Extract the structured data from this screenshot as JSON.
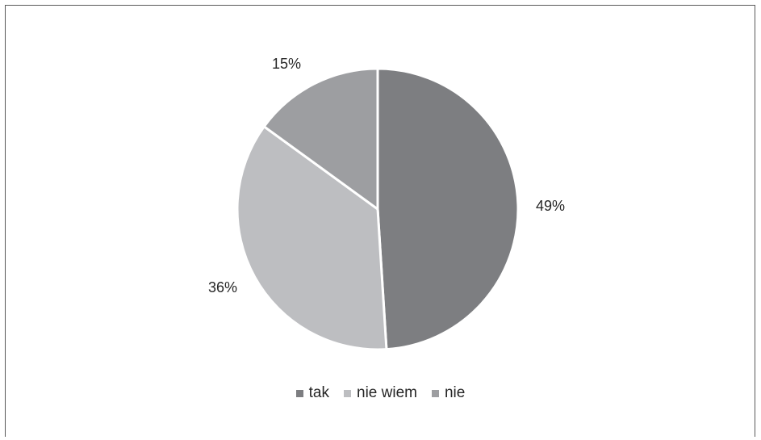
{
  "chart_data": {
    "type": "pie",
    "title": "",
    "slices": [
      {
        "name": "tak",
        "value": 49,
        "label": "49%",
        "color": "#7d7e81"
      },
      {
        "name": "nie wiem",
        "value": 36,
        "label": "36%",
        "color": "#bdbec1"
      },
      {
        "name": "nie",
        "value": 15,
        "label": "15%",
        "color": "#9d9ea1"
      }
    ],
    "legend_position": "bottom",
    "start_angle": "12 o'clock",
    "direction": "clockwise"
  }
}
